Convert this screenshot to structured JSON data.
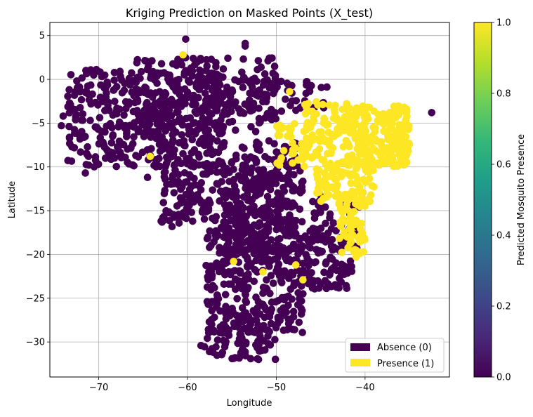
{
  "chart_data": {
    "type": "scatter",
    "title": "Kriging Prediction on Masked Points (X_test)",
    "xlabel": "Longitude",
    "ylabel": "Latitude",
    "xlim": [
      -75.5,
      -30.5
    ],
    "ylim": [
      -34,
      6.5
    ],
    "xticks": [
      -70,
      -60,
      -50,
      -40
    ],
    "yticks": [
      5,
      0,
      -5,
      -10,
      -15,
      -20,
      -25,
      -30
    ],
    "grid": true,
    "legend": {
      "placement": "lower-right",
      "entries": [
        {
          "label": "Absence (0)",
          "color": "#440154"
        },
        {
          "label": "Presence (1)",
          "color": "#fde725"
        }
      ]
    },
    "colorbar": {
      "label": "Predicted Mosquito Presence",
      "range": [
        0,
        1
      ],
      "ticks": [
        "0.0",
        "0.2",
        "0.4",
        "0.6",
        "0.8",
        "1.0"
      ],
      "colormap": [
        "#440154",
        "#482878",
        "#3e4989",
        "#31688e",
        "#26828e",
        "#1f9e89",
        "#35b779",
        "#6ece58",
        "#b5de2b",
        "#fde725"
      ]
    },
    "colors": {
      "absence": "#440154",
      "presence": "#fde725"
    },
    "absence_regions": [
      {
        "lon_min": -73.5,
        "lon_max": -56,
        "lat_min": -10,
        "lat_max": 1.2,
        "n": 430
      },
      {
        "lon_min": -66,
        "lon_max": -50,
        "lat_min": -6,
        "lat_max": 2.5,
        "n": 200
      },
      {
        "lon_min": -60,
        "lon_max": -44,
        "lat_min": -4,
        "lat_max": 0,
        "n": 70
      },
      {
        "lon_min": -63,
        "lon_max": -48,
        "lat_min": -17,
        "lat_max": -9,
        "n": 260
      },
      {
        "lon_min": -56,
        "lon_max": -47,
        "lat_min": -20,
        "lat_max": -7,
        "n": 200
      },
      {
        "lon_min": -46,
        "lon_max": -40.5,
        "lat_min": -20,
        "lat_max": -13,
        "n": 40
      },
      {
        "lon_min": -58,
        "lon_max": -41.5,
        "lat_min": -24,
        "lat_max": -17,
        "n": 320
      },
      {
        "lon_min": -58,
        "lon_max": -47,
        "lat_min": -29,
        "lat_max": -24,
        "n": 130
      },
      {
        "lon_min": -58.5,
        "lon_max": -50,
        "lat_min": -32,
        "lat_max": -28,
        "n": 60
      }
    ],
    "absence_points": [
      {
        "lon": -60.2,
        "lat": 4.6
      },
      {
        "lon": -53.5,
        "lat": 3.8
      },
      {
        "lon": -53.5,
        "lat": 4.1
      },
      {
        "lon": -58.5,
        "lat": 2.2
      },
      {
        "lon": -74.0,
        "lat": -4.2
      },
      {
        "lon": -74.2,
        "lat": -5.3
      },
      {
        "lon": -71.5,
        "lat": -10.7
      },
      {
        "lon": -64.5,
        "lat": -11.2
      },
      {
        "lon": -52.0,
        "lat": -32.0
      },
      {
        "lon": -54.0,
        "lat": -31.5
      },
      {
        "lon": -47.0,
        "lat": -24.5
      },
      {
        "lon": -44.5,
        "lat": -23.0
      },
      {
        "lon": -32.5,
        "lat": -3.8
      }
    ],
    "presence_regions": [
      {
        "lon_min": -42,
        "lon_max": -35,
        "lat_min": -10,
        "lat_max": -3,
        "n": 230
      },
      {
        "lon_min": -47,
        "lon_max": -42,
        "lat_min": -9,
        "lat_max": -2.5,
        "n": 80
      },
      {
        "lon_min": -50,
        "lon_max": -46,
        "lat_min": -10,
        "lat_max": -5,
        "n": 40
      },
      {
        "lon_min": -45.5,
        "lon_max": -39,
        "lat_min": -14,
        "lat_max": -9,
        "n": 100
      },
      {
        "lon_min": -43,
        "lon_max": -40,
        "lat_min": -20,
        "lat_max": -13.5,
        "n": 60
      }
    ],
    "presence_points": [
      {
        "lon": -60.5,
        "lat": 2.8
      },
      {
        "lon": -48.5,
        "lat": -1.4
      },
      {
        "lon": -64.2,
        "lat": -8.8
      },
      {
        "lon": -54.8,
        "lat": -20.8
      },
      {
        "lon": -51.5,
        "lat": -22.0
      },
      {
        "lon": -47.8,
        "lat": -21.2
      },
      {
        "lon": -47.0,
        "lat": -22.9
      },
      {
        "lon": -41.0,
        "lat": -20.3
      }
    ]
  }
}
